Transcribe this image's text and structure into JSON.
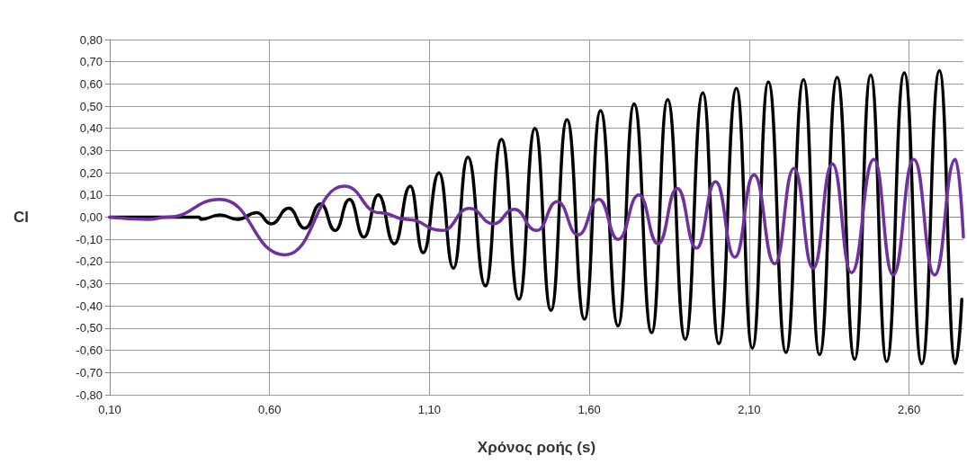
{
  "chart_data": {
    "type": "line",
    "xlabel": "Χρόνος ροής (s)",
    "ylabel": "Cl",
    "xlim": [
      0.1,
      2.77
    ],
    "xticks": [
      {
        "value": 0.1,
        "label": "0,10"
      },
      {
        "value": 0.6,
        "label": "0,60"
      },
      {
        "value": 1.1,
        "label": "1,10"
      },
      {
        "value": 1.6,
        "label": "1,60"
      },
      {
        "value": 2.1,
        "label": "2,10"
      },
      {
        "value": 2.6,
        "label": "2,60"
      }
    ],
    "ylim": [
      -0.8,
      0.8
    ],
    "yticks": [
      {
        "value": -0.8,
        "label": "-0,80"
      },
      {
        "value": -0.7,
        "label": "-0,70"
      },
      {
        "value": -0.6,
        "label": "-0,60"
      },
      {
        "value": -0.5,
        "label": "-0,50"
      },
      {
        "value": -0.4,
        "label": "-0,40"
      },
      {
        "value": -0.3,
        "label": "-0,30"
      },
      {
        "value": -0.2,
        "label": "-0,20"
      },
      {
        "value": -0.1,
        "label": "-0,10"
      },
      {
        "value": 0,
        "label": "0,00"
      },
      {
        "value": 0.1,
        "label": "0,10"
      },
      {
        "value": 0.2,
        "label": "0,20"
      },
      {
        "value": 0.3,
        "label": "0,30"
      },
      {
        "value": 0.4,
        "label": "0,40"
      },
      {
        "value": 0.5,
        "label": "0,50"
      },
      {
        "value": 0.6,
        "label": "0,60"
      },
      {
        "value": 0.7,
        "label": "0,70"
      },
      {
        "value": 0.8,
        "label": "0,80"
      }
    ],
    "grid": true,
    "marker": "none",
    "line_style": "solid",
    "series": [
      {
        "color": "#000000",
        "x": [
          0.1,
          0.38,
          0.385,
          0.445,
          0.5,
          0.56,
          0.605,
          0.66,
          0.71,
          0.76,
          0.805,
          0.85,
          0.895,
          0.94,
          0.99,
          1.04,
          1.08,
          1.13,
          1.175,
          1.22,
          1.275,
          1.325,
          1.38,
          1.43,
          1.48,
          1.53,
          1.585,
          1.635,
          1.69,
          1.74,
          1.795,
          1.845,
          1.9,
          1.955,
          2.005,
          2.06,
          2.11,
          2.16,
          2.215,
          2.27,
          2.32,
          2.375,
          2.43,
          2.48,
          2.53,
          2.585,
          2.64,
          2.695,
          2.745,
          2.765
        ],
        "values": [
          0,
          0,
          -0.01,
          0.01,
          -0.01,
          0.02,
          -0.03,
          0.04,
          -0.05,
          0.06,
          -0.06,
          0.08,
          -0.09,
          0.1,
          -0.12,
          0.14,
          -0.16,
          0.2,
          -0.23,
          0.27,
          -0.31,
          0.35,
          -0.37,
          0.4,
          -0.42,
          0.44,
          -0.46,
          0.48,
          -0.49,
          0.51,
          -0.52,
          0.53,
          -0.55,
          0.56,
          -0.57,
          0.58,
          -0.59,
          0.61,
          -0.61,
          0.62,
          -0.62,
          0.63,
          -0.64,
          0.64,
          -0.65,
          0.65,
          -0.66,
          0.66,
          -0.66,
          -0.37
        ]
      },
      {
        "color": "#7030a0",
        "x": [
          0.1,
          0.22,
          0.28,
          0.445,
          0.648,
          0.833,
          0.945,
          1.03,
          1.14,
          1.225,
          1.3,
          1.365,
          1.435,
          1.5,
          1.565,
          1.63,
          1.69,
          1.755,
          1.815,
          1.875,
          1.935,
          1.995,
          2.055,
          2.115,
          2.18,
          2.24,
          2.3,
          2.36,
          2.42,
          2.49,
          2.55,
          2.615,
          2.68,
          2.745,
          2.77
        ],
        "values": [
          0,
          -0.01,
          0,
          0.08,
          -0.17,
          0.14,
          0.02,
          -0.01,
          -0.06,
          0.04,
          -0.03,
          0.035,
          -0.06,
          0.07,
          -0.08,
          0.08,
          -0.1,
          0.1,
          -0.12,
          0.13,
          -0.14,
          0.16,
          -0.18,
          0.19,
          -0.21,
          0.22,
          -0.23,
          0.24,
          -0.25,
          0.26,
          -0.26,
          0.26,
          -0.26,
          0.26,
          -0.09
        ]
      }
    ]
  }
}
